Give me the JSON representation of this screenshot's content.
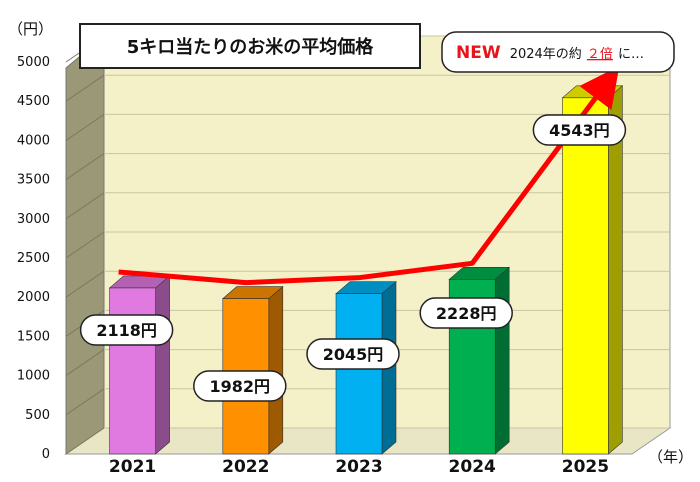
{
  "chart_data": {
    "type": "bar",
    "title": "5キロ当たりのお米の平均価格",
    "y_unit": "（円）",
    "x_unit": "（年）",
    "categories": [
      "2021",
      "2022",
      "2023",
      "2024",
      "2025"
    ],
    "values": [
      2118,
      1982,
      2045,
      2228,
      4543
    ],
    "value_labels": [
      "2118円",
      "1982円",
      "2045円",
      "2228円",
      "4543円"
    ],
    "bar_colors": [
      "#e07ae0",
      "#ff9100",
      "#00b0f0",
      "#00b050",
      "#ffff00"
    ],
    "trend_line_color": "#ff0000",
    "plot_background": "#f4f0c8",
    "ylim": [
      0,
      5000
    ],
    "yticks": [
      0,
      500,
      1000,
      1500,
      2000,
      2500,
      3000,
      3500,
      4000,
      4500,
      5000
    ],
    "grid": true,
    "annotation": {
      "new": "NEW",
      "prefix": "2024年の約",
      "emphasis": "２倍",
      "suffix": "に…"
    }
  }
}
